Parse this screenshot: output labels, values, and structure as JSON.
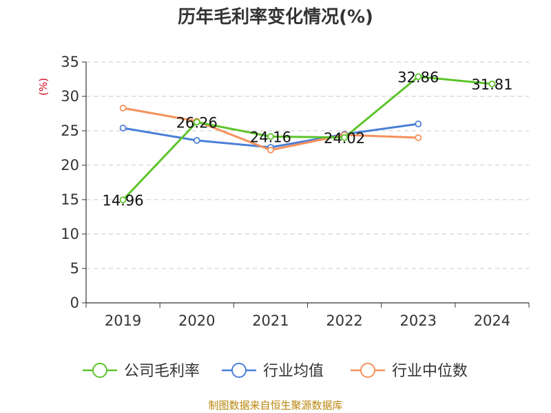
{
  "chart_data": {
    "type": "line",
    "title": "历年毛利率变化情况(%)",
    "unit_label": "(%)",
    "categories": [
      "2019",
      "2020",
      "2021",
      "2022",
      "2023",
      "2024"
    ],
    "ylim": [
      0,
      35
    ],
    "yticks": [
      0,
      5,
      10,
      15,
      20,
      25,
      30,
      35
    ],
    "ytick_labels": [
      "0",
      "5",
      "10",
      "15",
      "20",
      "25",
      "30",
      "35"
    ],
    "grid": true,
    "legend_position": "bottom",
    "series": [
      {
        "name": "公司毛利率",
        "color": "#5cc42a",
        "values": [
          14.96,
          26.26,
          24.16,
          24.02,
          32.86,
          31.81
        ],
        "labels": [
          "14.96",
          "26.26",
          "24.16",
          "24.02",
          "32.86",
          "31.81"
        ]
      },
      {
        "name": "行业均值",
        "color": "#4a7fd6",
        "values": [
          25.4,
          23.6,
          22.6,
          24.5,
          26.0,
          null
        ]
      },
      {
        "name": "行业中位数",
        "color": "#f5915a",
        "values": [
          28.3,
          26.4,
          22.2,
          24.4,
          24.0,
          null
        ]
      }
    ]
  },
  "source": "制图数据来自恒生聚源数据库"
}
